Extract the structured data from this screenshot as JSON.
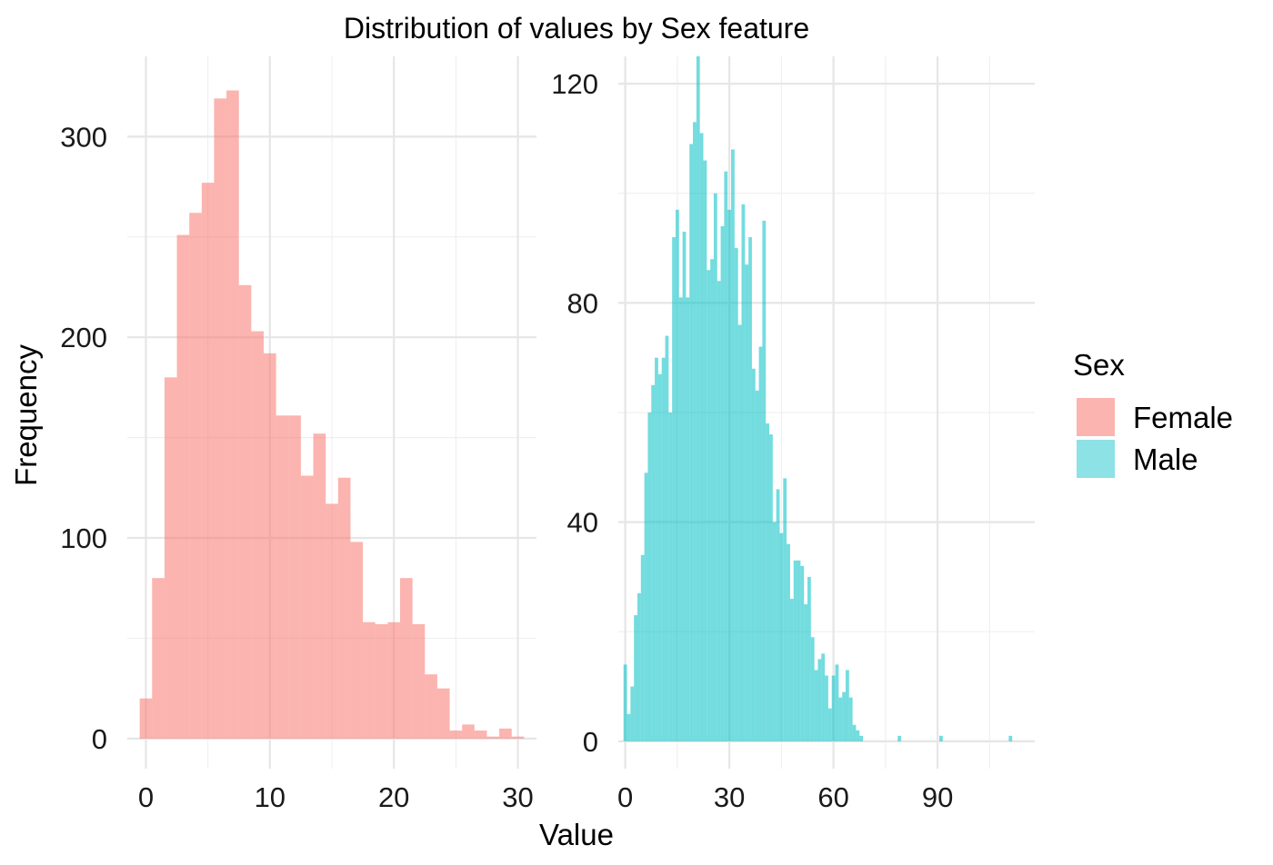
{
  "chart_data": [
    {
      "type": "bar",
      "subtype": "histogram",
      "panel": "left",
      "title": "Distribution of values by Sex feature",
      "xlabel": "Value",
      "ylabel": "Frequency",
      "group": "Female",
      "color": "#F8766D",
      "bin_width": 1,
      "x": [
        0,
        1,
        2,
        3,
        4,
        5,
        6,
        7,
        8,
        9,
        10,
        11,
        12,
        13,
        14,
        15,
        16,
        17,
        18,
        19,
        20,
        21,
        22,
        23,
        24,
        25,
        26,
        27,
        28,
        29,
        30
      ],
      "values": [
        20,
        80,
        180,
        251,
        262,
        277,
        319,
        323,
        226,
        203,
        192,
        161,
        161,
        131,
        152,
        117,
        130,
        98,
        58,
        57,
        58,
        80,
        57,
        32,
        25,
        4,
        7,
        4,
        1,
        5,
        1
      ],
      "xlim": [
        -1.5,
        31.5
      ],
      "ylim": [
        -15,
        340
      ],
      "x_ticks": [
        0,
        10,
        20,
        30
      ],
      "x_tick_labels": [
        "0",
        "10",
        "20",
        "30"
      ],
      "y_ticks": [
        0,
        100,
        200,
        300
      ],
      "y_tick_labels": [
        "0",
        "100",
        "200",
        "300"
      ],
      "grid": true
    },
    {
      "type": "bar",
      "subtype": "histogram",
      "panel": "right",
      "group": "Male",
      "color": "#00BFC4",
      "bin_width": 1,
      "x": [
        0,
        1,
        2,
        3,
        4,
        5,
        6,
        7,
        8,
        9,
        10,
        11,
        12,
        13,
        14,
        15,
        16,
        17,
        18,
        19,
        20,
        21,
        22,
        23,
        24,
        25,
        26,
        27,
        28,
        29,
        30,
        31,
        32,
        33,
        34,
        35,
        36,
        37,
        38,
        39,
        40,
        41,
        42,
        43,
        44,
        45,
        46,
        47,
        48,
        49,
        50,
        51,
        52,
        53,
        54,
        55,
        56,
        57,
        58,
        59,
        60,
        61,
        62,
        63,
        64,
        65,
        66,
        67,
        68,
        79,
        91,
        111
      ],
      "values": [
        14,
        5,
        10,
        23,
        27,
        34,
        49,
        60,
        65,
        70,
        67,
        70,
        74,
        60,
        92,
        97,
        81,
        93,
        81,
        109,
        113,
        125,
        111,
        106,
        86,
        88,
        100,
        84,
        94,
        104,
        97,
        108,
        90,
        76,
        98,
        87,
        92,
        68,
        64,
        72,
        95,
        58,
        56,
        40,
        46,
        38,
        48,
        36,
        26,
        33,
        33,
        32,
        25,
        30,
        19,
        13,
        15,
        16,
        12,
        6,
        12,
        14,
        8,
        9,
        13,
        8,
        3,
        2,
        1,
        1,
        1,
        1
      ],
      "xlim": [
        -2,
        118
      ],
      "ylim": [
        -5,
        125
      ],
      "x_ticks": [
        0,
        30,
        60,
        90
      ],
      "x_tick_labels": [
        "0",
        "30",
        "60",
        "90"
      ],
      "y_ticks": [
        0,
        40,
        80,
        120
      ],
      "y_tick_labels": [
        "0",
        "40",
        "80",
        "120"
      ],
      "grid": true
    }
  ],
  "legend": {
    "title": "Sex",
    "placement": "right",
    "items": [
      {
        "label": "Female",
        "color": "#F8766D"
      },
      {
        "label": "Male",
        "color": "#00BFC4"
      }
    ]
  }
}
